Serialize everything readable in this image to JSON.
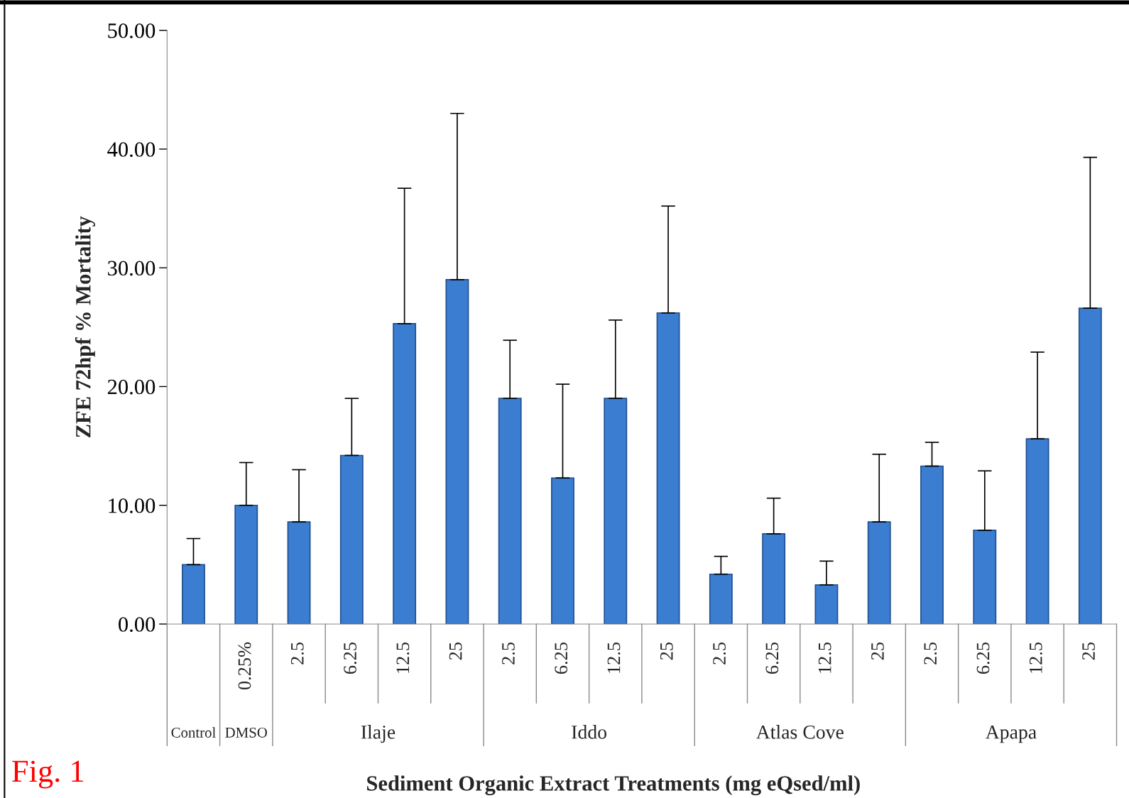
{
  "chart_data": {
    "type": "bar",
    "xlabel": "Sediment Organic Extract Treatments (mg eQsed/ml)",
    "ylabel": "ZFE 72hpf % Mortality",
    "categories": [
      null,
      "0.25%",
      "2.5",
      "6.25",
      "12.5",
      "25",
      "2.5",
      "6.25",
      "12.5",
      "25",
      "2.5",
      "6.25",
      "12.5",
      "25",
      "2.5",
      "6.25",
      "12.5",
      "25"
    ],
    "values": [
      5.0,
      10.0,
      8.6,
      14.2,
      25.3,
      29.0,
      19.0,
      12.3,
      19.0,
      26.2,
      4.2,
      7.6,
      3.3,
      8.6,
      13.3,
      7.9,
      15.6,
      26.6
    ],
    "errors": [
      [
        5.0,
        7.2
      ],
      [
        10.0,
        13.6
      ],
      [
        8.6,
        13.0
      ],
      [
        14.2,
        19.0
      ],
      [
        25.3,
        36.7
      ],
      [
        29.0,
        43.0
      ],
      [
        19.0,
        23.9
      ],
      [
        12.3,
        20.2
      ],
      [
        19.0,
        25.6
      ],
      [
        26.2,
        35.2
      ],
      [
        4.2,
        5.7
      ],
      [
        7.6,
        10.6
      ],
      [
        3.3,
        5.3
      ],
      [
        8.6,
        14.3
      ],
      [
        13.3,
        15.3
      ],
      [
        7.9,
        12.9
      ],
      [
        15.6,
        22.9
      ],
      [
        26.6,
        39.3
      ]
    ],
    "color": "#3b7dd0",
    "ylim": [
      0,
      50
    ],
    "yticks": [
      {
        "value": 0,
        "label": "0.00"
      },
      {
        "value": 10,
        "label": "10.00"
      },
      {
        "value": 20,
        "label": "20.00"
      },
      {
        "value": 30,
        "label": "30.00"
      },
      {
        "value": 40,
        "label": "40.00"
      },
      {
        "value": 50,
        "label": "50.00"
      }
    ],
    "grid": false,
    "legend": false,
    "annotations": [
      "Control",
      "DMSO",
      "Ilaje",
      "Iddo",
      "Atlas Cove",
      "Apapa",
      "Fig. 1"
    ]
  }
}
